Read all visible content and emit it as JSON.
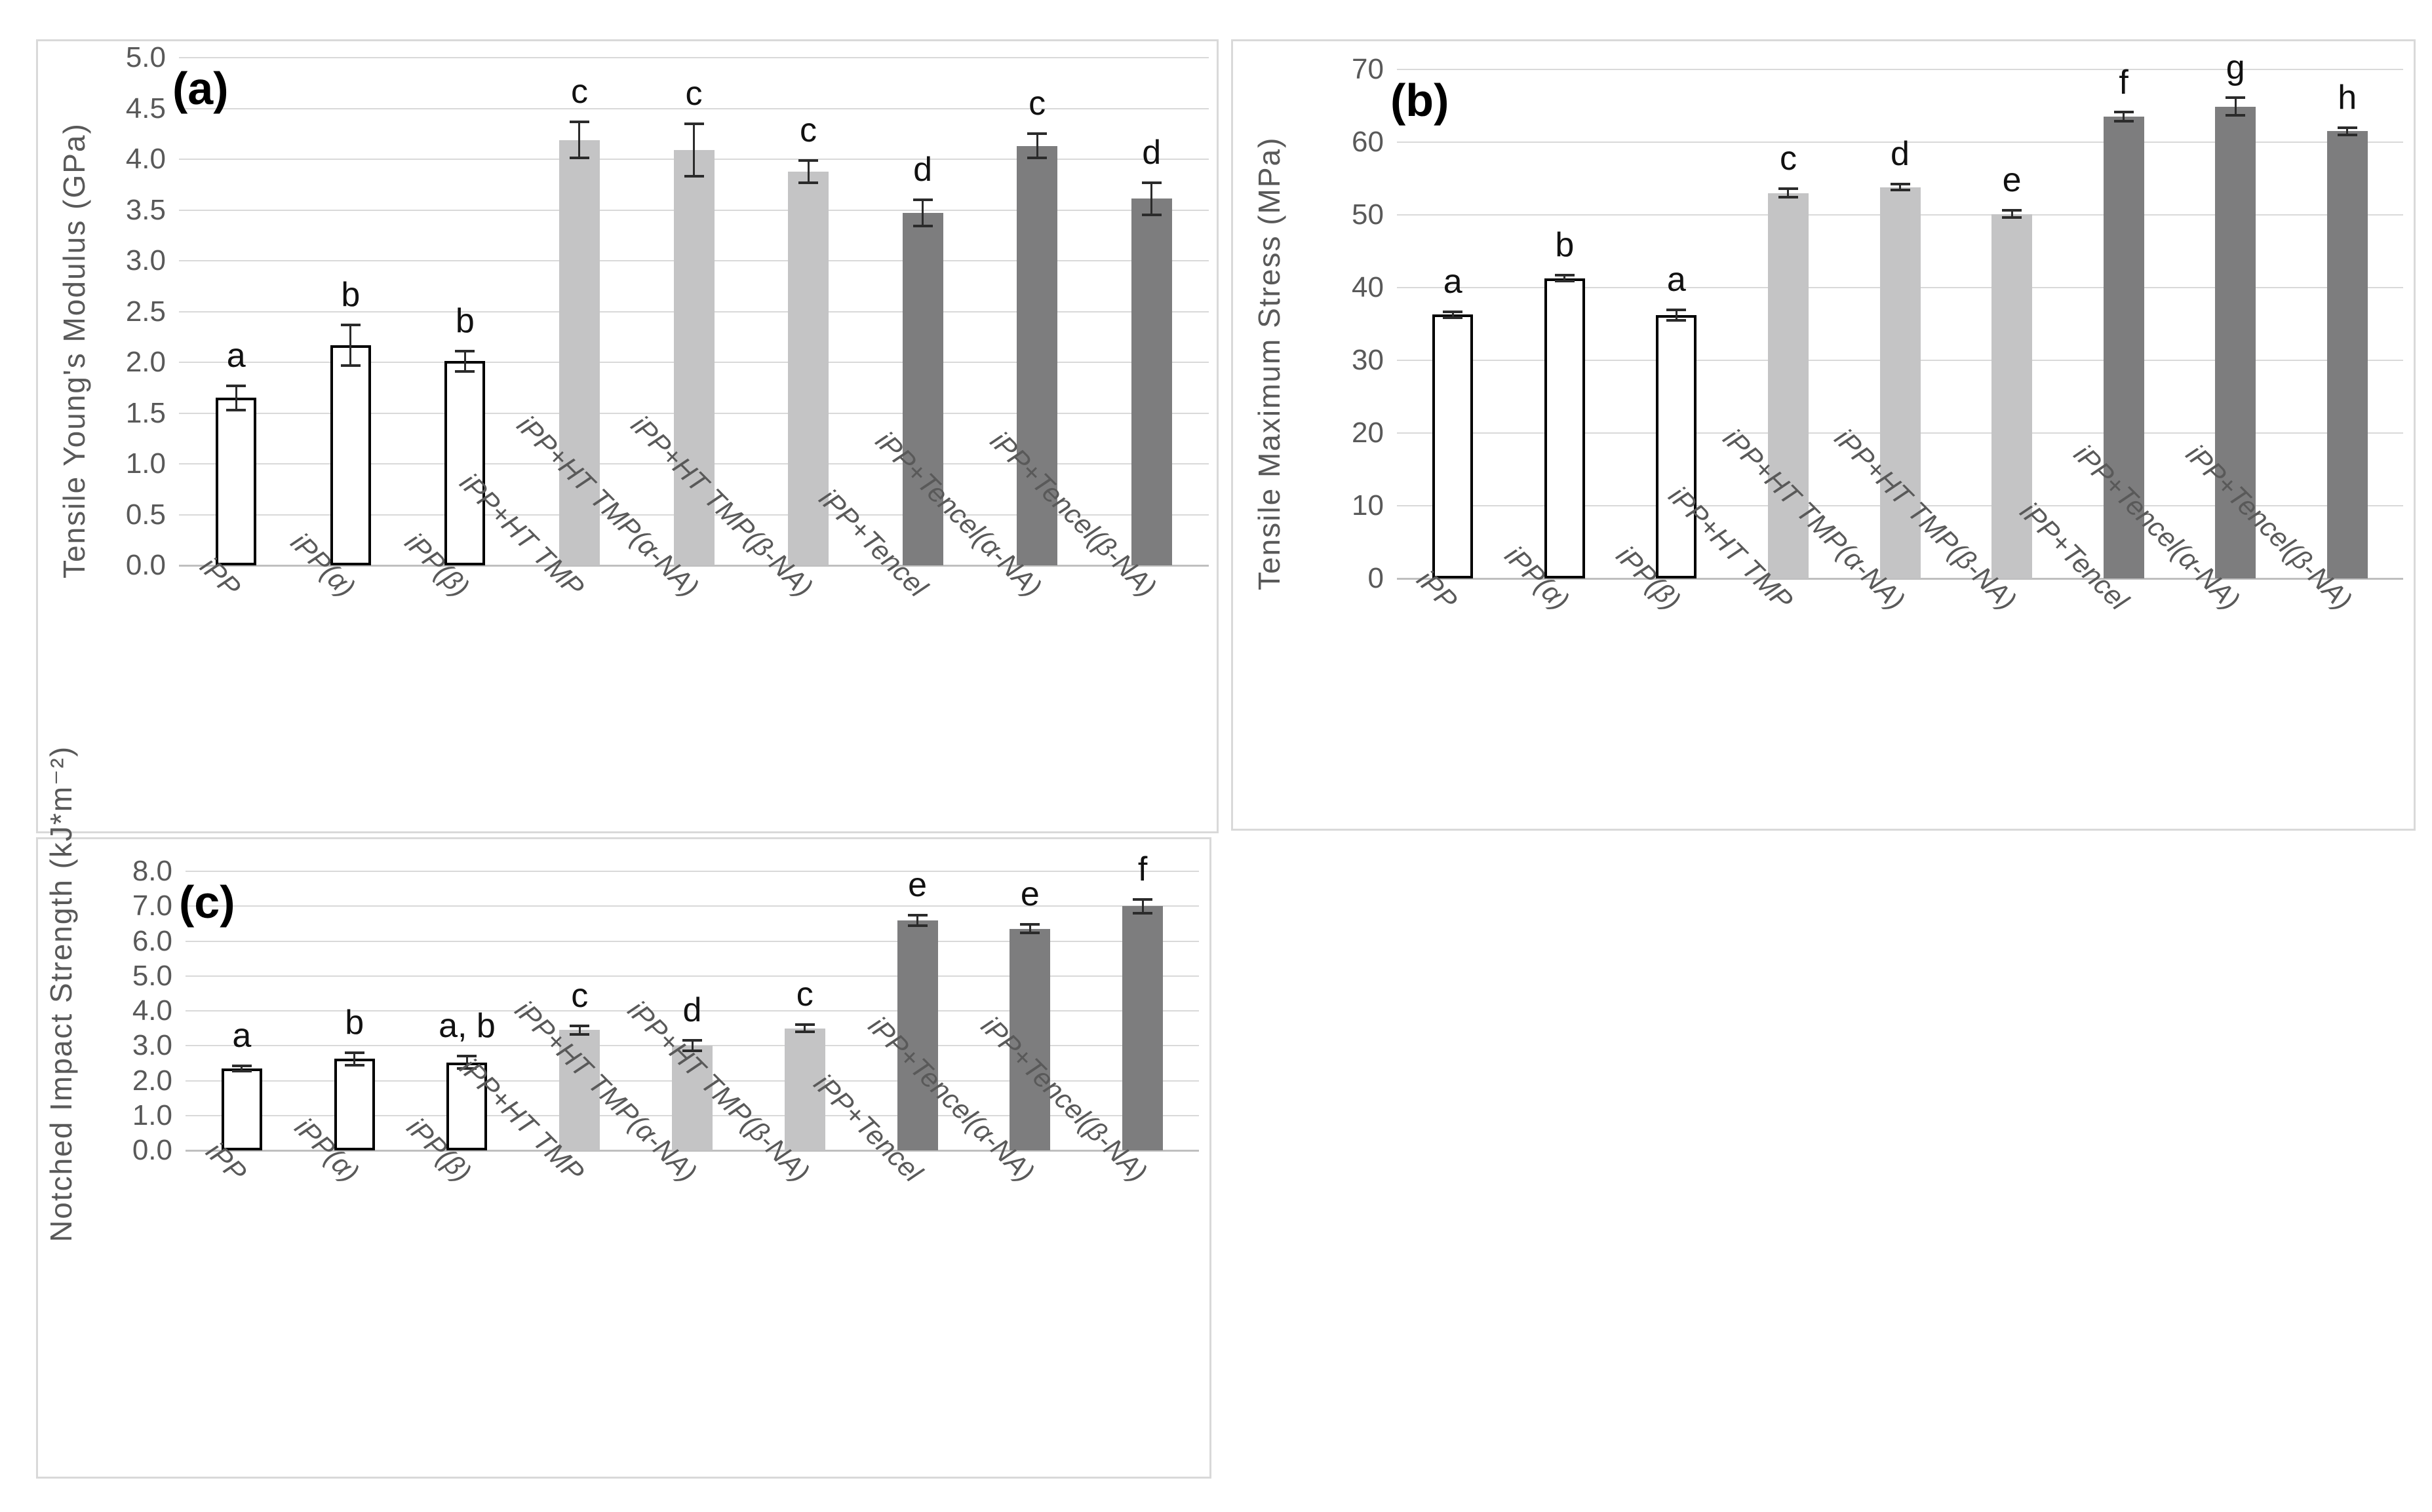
{
  "figure": {
    "background": "#ffffff",
    "colors": {
      "bar_white_fill": "#ffffff",
      "bar_white_outline": "#000000",
      "bar_light_gray": "#c4c4c5",
      "bar_dark_gray": "#7d7d7e",
      "gridline": "#d9d9d9",
      "axis_text": "#595959",
      "error_bar": "#2b2b2b",
      "significance_letter": "#111111",
      "panel_border": "#d9d9d9"
    }
  },
  "chart_data": [
    {
      "type": "bar",
      "panel_label": "(a)",
      "title": "",
      "xlabel": "",
      "ylabel": "Tensile Young's Modulus (GPa)",
      "ylim": [
        0,
        5
      ],
      "ytick_step": 0.5,
      "yticks": [
        "0.0",
        "0.5",
        "1.0",
        "1.5",
        "2.0",
        "2.5",
        "3.0",
        "3.5",
        "4.0",
        "4.5",
        "5.0"
      ],
      "grid": true,
      "legend": "none",
      "categories": [
        "iPP",
        "iPP(α)",
        "iPP(β)",
        "iPP+HT TMP",
        "iPP+HT TMP(α-NA)",
        "iPP+HT TMP(β-NA)",
        "iPP+Tencel",
        "iPP+Tencel(α-NA)",
        "iPP+Tencel(β-NA)"
      ],
      "values": [
        1.65,
        2.17,
        2.01,
        4.19,
        4.09,
        3.88,
        3.47,
        4.13,
        3.61
      ],
      "errors": [
        0.12,
        0.2,
        0.1,
        0.18,
        0.26,
        0.11,
        0.13,
        0.12,
        0.16
      ],
      "letters": [
        "a",
        "b",
        "b",
        "c",
        "c",
        "c",
        "d",
        "c",
        "d"
      ],
      "bar_styles": [
        "white",
        "white",
        "white",
        "light",
        "light",
        "light",
        "dark",
        "dark",
        "dark"
      ]
    },
    {
      "type": "bar",
      "panel_label": "(b)",
      "title": "",
      "xlabel": "",
      "ylabel": "Tensile Maximum Stress (MPa)",
      "ylim": [
        0,
        70
      ],
      "ytick_step": 10,
      "yticks": [
        "0",
        "10",
        "20",
        "30",
        "40",
        "50",
        "60",
        "70"
      ],
      "grid": true,
      "legend": "none",
      "categories": [
        "iPP",
        "iPP(α)",
        "iPP(β)",
        "iPP+HT TMP",
        "iPP+HT TMP(α-NA)",
        "iPP+HT TMP(β-NA)",
        "iPP+Tencel",
        "iPP+Tencel(α-NA)",
        "iPP+Tencel(β-NA)"
      ],
      "values": [
        36.3,
        41.3,
        36.2,
        53.0,
        53.8,
        50.1,
        63.5,
        64.9,
        61.5
      ],
      "errors": [
        0.4,
        0.4,
        0.7,
        0.6,
        0.4,
        0.5,
        0.6,
        1.2,
        0.5
      ],
      "letters": [
        "a",
        "b",
        "a",
        "c",
        "d",
        "e",
        "f",
        "g",
        "h"
      ],
      "bar_styles": [
        "white",
        "white",
        "white",
        "light",
        "light",
        "light",
        "dark",
        "dark",
        "dark"
      ]
    },
    {
      "type": "bar",
      "panel_label": "(c)",
      "title": "",
      "xlabel": "",
      "ylabel": "Notched Impact Strength (kJ*m⁻²)",
      "ylim": [
        0,
        8
      ],
      "ytick_step": 1,
      "yticks": [
        "0.0",
        "1.0",
        "2.0",
        "3.0",
        "4.0",
        "5.0",
        "6.0",
        "7.0",
        "8.0"
      ],
      "grid": true,
      "legend": "none",
      "categories": [
        "iPP",
        "iPP(α)",
        "iPP(β)",
        "iPP+HT TMP",
        "iPP+HT TMP(α-NA)",
        "iPP+HT TMP(β-NA)",
        "iPP+Tencel",
        "iPP+Tencel(α-NA)",
        "iPP+Tencel(β-NA)"
      ],
      "values": [
        2.35,
        2.62,
        2.52,
        3.45,
        3.0,
        3.5,
        6.6,
        6.35,
        7.0
      ],
      "errors": [
        0.07,
        0.18,
        0.18,
        0.12,
        0.15,
        0.1,
        0.15,
        0.12,
        0.2
      ],
      "letters": [
        "a",
        "b",
        "a, b",
        "c",
        "d",
        "c",
        "e",
        "e",
        "f"
      ],
      "bar_styles": [
        "white",
        "white",
        "white",
        "light",
        "light",
        "light",
        "dark",
        "dark",
        "dark"
      ]
    }
  ]
}
